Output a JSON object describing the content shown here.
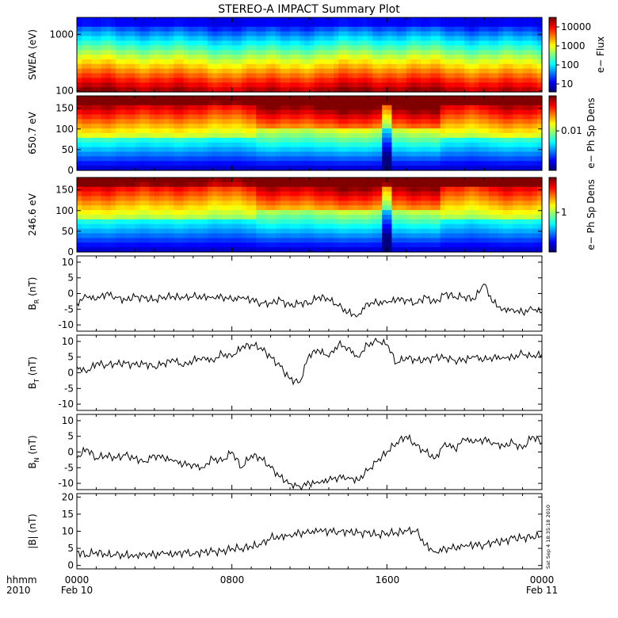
{
  "title": "STEREO-A IMPACT Summary Plot",
  "stamp": "Sat Sep  4 18:35:18 2010",
  "time_labels": {
    "row1": [
      "hhmm",
      "0000",
      "0800",
      "1600",
      "0000"
    ],
    "row2": [
      "2010",
      "Feb 10",
      "",
      "",
      "Feb 11"
    ]
  },
  "chart_data": [
    {
      "type": "heatmap",
      "ylabel": "SWEA (eV)",
      "ylog": true,
      "ylim": [
        95,
        2000
      ],
      "yticks": [
        "1000",
        "100"
      ],
      "colorbar": {
        "label": "e− Flux",
        "ticks": [
          "10000",
          "1000",
          "100",
          "10"
        ],
        "scale": "log"
      }
    },
    {
      "type": "heatmap",
      "ylabel": "650.7 eV",
      "ylim": [
        0,
        180
      ],
      "yticks": [
        "150",
        "100",
        "50",
        "0"
      ],
      "colorbar": {
        "label": "e− Ph Sp Dens",
        "ticks": [
          "0.01"
        ],
        "scale": "log"
      }
    },
    {
      "type": "heatmap",
      "ylabel": "246.6 eV",
      "ylim": [
        0,
        180
      ],
      "yticks": [
        "150",
        "100",
        "50",
        "0"
      ],
      "colorbar": {
        "label": "e− Ph Sp Dens",
        "ticks": [
          "1"
        ],
        "scale": "log"
      }
    },
    {
      "type": "line",
      "ylabel": "B",
      "ysub": "R",
      "yunit": "(nT)",
      "ylim": [
        -12,
        12
      ],
      "yticks": [
        "10",
        "5",
        "0",
        "-5",
        "-10"
      ],
      "x": [
        0,
        0.5,
        1,
        1.5,
        2,
        2.5,
        3,
        3.5,
        4,
        4.5,
        5,
        5.5,
        6,
        6.5,
        7,
        7.5,
        8,
        8.5,
        9,
        9.5,
        10,
        10.5,
        11,
        11.5,
        12,
        12.5,
        13,
        13.5,
        14,
        14.5,
        15,
        15.5,
        16,
        16.5,
        17,
        17.5,
        18,
        18.5,
        19,
        19.5,
        20,
        20.5,
        21,
        21.5,
        22,
        22.5,
        23,
        23.5,
        24
      ],
      "y": [
        -3,
        -1,
        -2,
        0,
        -1,
        -2,
        -1,
        -1.5,
        -2,
        -1,
        -1,
        -1.5,
        -1,
        -1,
        -1,
        -1,
        -2,
        -1.5,
        -2,
        -3,
        -3,
        -2,
        -4,
        -3,
        -3,
        -1,
        -2,
        -4,
        -6,
        -7,
        -3,
        -3,
        -3,
        -2,
        -2,
        -3,
        -1,
        -3,
        0,
        -1,
        -1,
        -2,
        3,
        -3,
        -5,
        -5,
        -6,
        -5,
        -6
      ]
    },
    {
      "type": "line",
      "ylabel": "B",
      "ysub": "T",
      "yunit": "(nT)",
      "ylim": [
        -12,
        12
      ],
      "yticks": [
        "10",
        "5",
        "0",
        "-5",
        "-10"
      ],
      "x": [
        0,
        0.5,
        1,
        1.5,
        2,
        2.5,
        3,
        3.5,
        4,
        4.5,
        5,
        5.5,
        6,
        6.5,
        7,
        7.5,
        8,
        8.5,
        9,
        9.5,
        10,
        10.5,
        11,
        11.5,
        12,
        12.5,
        13,
        13.5,
        14,
        14.5,
        15,
        15.5,
        16,
        16.5,
        17,
        17.5,
        18,
        18.5,
        19,
        19.5,
        20,
        20.5,
        21,
        21.5,
        22,
        22.5,
        23,
        23.5,
        24
      ],
      "y": [
        2,
        0,
        3,
        2.5,
        3,
        3,
        2.5,
        3,
        2,
        3,
        4,
        2,
        4,
        5,
        4,
        6,
        5,
        8,
        9,
        8,
        5,
        2,
        -2,
        -3,
        6,
        7,
        5,
        9,
        8,
        5,
        9,
        10,
        9,
        3,
        5,
        4,
        4,
        5,
        5,
        4,
        4,
        5,
        4,
        5,
        5,
        5,
        6,
        5,
        6
      ]
    },
    {
      "type": "line",
      "ylabel": "B",
      "ysub": "N",
      "yunit": "(nT)",
      "ylim": [
        -12,
        12
      ],
      "yticks": [
        "10",
        "5",
        "0",
        "-5",
        "-10"
      ],
      "x": [
        0,
        0.5,
        1,
        1.5,
        2,
        2.5,
        3,
        3.5,
        4,
        4.5,
        5,
        5.5,
        6,
        6.5,
        7,
        7.5,
        8,
        8.5,
        9,
        9.5,
        10,
        10.5,
        11,
        11.5,
        12,
        12.5,
        13,
        13.5,
        14,
        14.5,
        15,
        15.5,
        16,
        16.5,
        17,
        17.5,
        18,
        18.5,
        19,
        19.5,
        20,
        20.5,
        21,
        21.5,
        22,
        22.5,
        23,
        23.5,
        24
      ],
      "y": [
        -2,
        1,
        -2,
        -1,
        -2,
        -1,
        -2,
        -3,
        -1,
        -2,
        -3,
        -4,
        -4,
        -5,
        -2,
        -3,
        0,
        -5,
        -1,
        -2,
        -5,
        -8,
        -10,
        -11,
        -10,
        -10,
        -9,
        -8,
        -8,
        -9,
        -6,
        -3,
        0,
        3,
        5,
        2,
        0,
        -2,
        3,
        1,
        4,
        3,
        4,
        3,
        2,
        3,
        1,
        5,
        3
      ]
    },
    {
      "type": "line",
      "ylabel": "|B| (nT)",
      "ylim": [
        -1,
        21
      ],
      "yticks": [
        "20",
        "15",
        "10",
        "5",
        "0"
      ],
      "x": [
        0,
        0.5,
        1,
        1.5,
        2,
        2.5,
        3,
        3.5,
        4,
        4.5,
        5,
        5.5,
        6,
        6.5,
        7,
        7.5,
        8,
        8.5,
        9,
        9.5,
        10,
        10.5,
        11,
        11.5,
        12,
        12.5,
        13,
        13.5,
        14,
        14.5,
        15,
        15.5,
        16,
        16.5,
        17,
        17.5,
        18,
        18.5,
        19,
        19.5,
        20,
        20.5,
        21,
        21.5,
        22,
        22.5,
        23,
        23.5,
        24
      ],
      "y": [
        4,
        3,
        4,
        3,
        3,
        3,
        3,
        3.5,
        3,
        3.5,
        3,
        4,
        3.5,
        4,
        4,
        4,
        5,
        5,
        5.5,
        6,
        8,
        8.5,
        9,
        9.5,
        9.5,
        10,
        10,
        10,
        10,
        9.5,
        9.5,
        9,
        9.5,
        9.5,
        10,
        10,
        6,
        4,
        5,
        5,
        5.5,
        6,
        6,
        7,
        7,
        8,
        8,
        8.5,
        8.5
      ]
    }
  ]
}
